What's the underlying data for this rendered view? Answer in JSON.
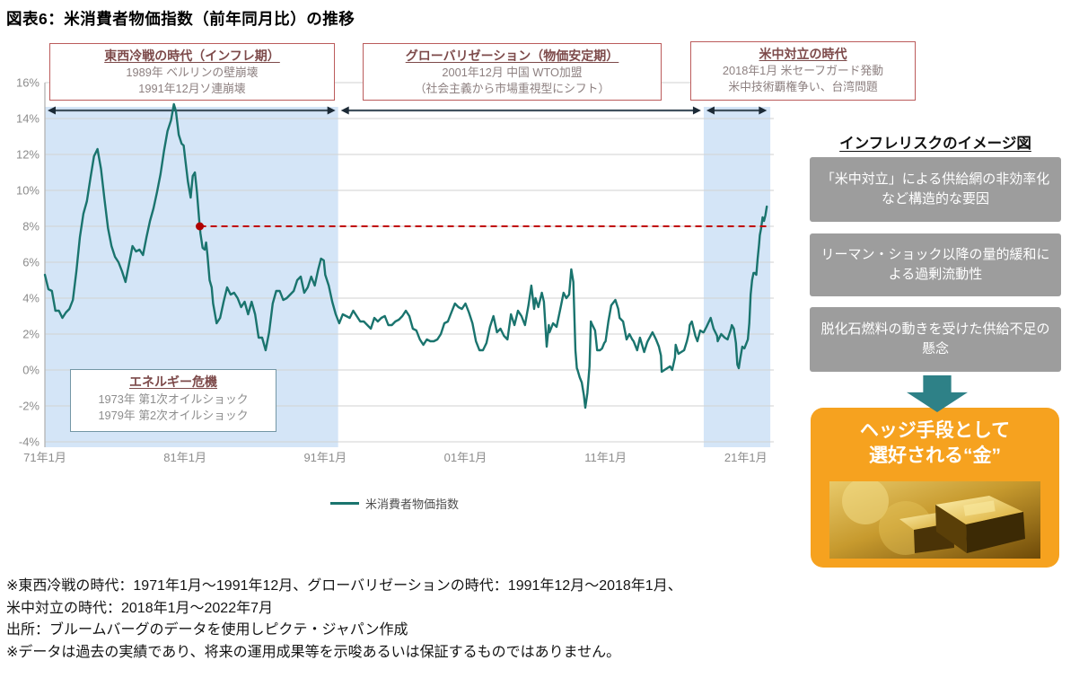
{
  "title": "図表6：米消費者物価指数（前年同月比）の推移",
  "chart_data": {
    "type": "line",
    "title": "米消費者物価指数（前年同月比）の推移",
    "xlabel": "",
    "ylabel": "",
    "x_range": [
      1971,
      2023
    ],
    "y_range": [
      -4,
      16
    ],
    "grid": "horizontal",
    "y_ticks": [
      "-4%",
      "-2%",
      "0%",
      "2%",
      "4%",
      "6%",
      "8%",
      "10%",
      "12%",
      "14%",
      "16%"
    ],
    "x_ticks": [
      {
        "year": 1971,
        "label": "71年1月"
      },
      {
        "year": 1981,
        "label": "81年1月"
      },
      {
        "year": 1991,
        "label": "91年1月"
      },
      {
        "year": 2001,
        "label": "01年1月"
      },
      {
        "year": 2011,
        "label": "11年1月"
      },
      {
        "year": 2021,
        "label": "21年1月"
      }
    ],
    "regions": [
      {
        "name": "東西冷戦の時代",
        "start": 1971,
        "end": 1991.92,
        "color": "#d4e5f7"
      },
      {
        "name": "米中対立の時代",
        "start": 2018,
        "end": 2022.75,
        "color": "#d4e5f7"
      }
    ],
    "era_arrows": [
      {
        "start": 1971.0,
        "end": 1991.92
      },
      {
        "start": 1991.92,
        "end": 2018.0
      },
      {
        "start": 2018.0,
        "end": 2022.7
      }
    ],
    "reference_line": {
      "y": 8,
      "x_start": 1982.05,
      "x_end": 2022.6,
      "color": "#c00000",
      "dot": [
        1982.05,
        8
      ]
    },
    "legend": {
      "label": "米消費者物価指数",
      "position": "bottom"
    },
    "series": [
      {
        "name": "米消費者物価指数",
        "color": "#1a746e",
        "points": [
          [
            1971,
            5.3
          ],
          [
            1971.25,
            4.5
          ],
          [
            1971.5,
            4.4
          ],
          [
            1971.75,
            3.3
          ],
          [
            1972,
            3.3
          ],
          [
            1972.25,
            2.9
          ],
          [
            1972.5,
            3.2
          ],
          [
            1972.75,
            3.4
          ],
          [
            1973,
            3.9
          ],
          [
            1973.25,
            5.5
          ],
          [
            1973.5,
            7.4
          ],
          [
            1973.75,
            8.7
          ],
          [
            1974,
            9.4
          ],
          [
            1974.25,
            10.7
          ],
          [
            1974.5,
            11.9
          ],
          [
            1974.75,
            12.3
          ],
          [
            1975,
            11.2
          ],
          [
            1975.25,
            9.5
          ],
          [
            1975.5,
            7.9
          ],
          [
            1975.75,
            6.9
          ],
          [
            1976,
            6.3
          ],
          [
            1976.25,
            6.0
          ],
          [
            1976.5,
            5.5
          ],
          [
            1976.75,
            4.9
          ],
          [
            1977,
            5.9
          ],
          [
            1977.25,
            6.9
          ],
          [
            1977.5,
            6.6
          ],
          [
            1977.75,
            6.7
          ],
          [
            1978,
            6.4
          ],
          [
            1978.25,
            7.4
          ],
          [
            1978.5,
            8.3
          ],
          [
            1978.75,
            9.0
          ],
          [
            1979,
            9.9
          ],
          [
            1979.25,
            10.9
          ],
          [
            1979.5,
            12.2
          ],
          [
            1979.75,
            13.3
          ],
          [
            1980,
            13.9
          ],
          [
            1980.2,
            14.8
          ],
          [
            1980.35,
            14.4
          ],
          [
            1980.55,
            13.1
          ],
          [
            1980.75,
            12.6
          ],
          [
            1980.9,
            12.5
          ],
          [
            1981,
            11.8
          ],
          [
            1981.2,
            10.5
          ],
          [
            1981.4,
            9.6
          ],
          [
            1981.55,
            10.8
          ],
          [
            1981.7,
            11.0
          ],
          [
            1981.85,
            9.9
          ],
          [
            1981.95,
            8.9
          ],
          [
            1982,
            8.4
          ],
          [
            1982.1,
            7.6
          ],
          [
            1982.25,
            6.8
          ],
          [
            1982.4,
            6.7
          ],
          [
            1982.5,
            7.1
          ],
          [
            1982.6,
            6.4
          ],
          [
            1982.75,
            5.0
          ],
          [
            1982.9,
            4.6
          ],
          [
            1983,
            3.7
          ],
          [
            1983.25,
            2.6
          ],
          [
            1983.5,
            2.9
          ],
          [
            1983.75,
            3.8
          ],
          [
            1984,
            4.6
          ],
          [
            1984.25,
            4.2
          ],
          [
            1984.5,
            4.3
          ],
          [
            1984.75,
            4.0
          ],
          [
            1985,
            3.5
          ],
          [
            1985.25,
            3.8
          ],
          [
            1985.5,
            3.1
          ],
          [
            1985.75,
            3.8
          ],
          [
            1986,
            3.1
          ],
          [
            1986.25,
            1.8
          ],
          [
            1986.5,
            1.8
          ],
          [
            1986.75,
            1.1
          ],
          [
            1987,
            2.1
          ],
          [
            1987.25,
            3.7
          ],
          [
            1987.5,
            4.4
          ],
          [
            1987.75,
            4.4
          ],
          [
            1988,
            3.9
          ],
          [
            1988.25,
            4.0
          ],
          [
            1988.5,
            4.2
          ],
          [
            1988.75,
            4.4
          ],
          [
            1989,
            5.0
          ],
          [
            1989.25,
            5.2
          ],
          [
            1989.5,
            4.3
          ],
          [
            1989.75,
            4.6
          ],
          [
            1990,
            5.2
          ],
          [
            1990.25,
            4.7
          ],
          [
            1990.5,
            5.6
          ],
          [
            1990.7,
            6.2
          ],
          [
            1990.9,
            6.1
          ],
          [
            1991,
            5.3
          ],
          [
            1991.25,
            4.7
          ],
          [
            1991.5,
            3.8
          ],
          [
            1991.75,
            3.1
          ],
          [
            1992,
            2.6
          ],
          [
            1992.25,
            3.1
          ],
          [
            1992.5,
            3.0
          ],
          [
            1992.75,
            2.9
          ],
          [
            1993,
            3.3
          ],
          [
            1993.25,
            3.0
          ],
          [
            1993.5,
            2.7
          ],
          [
            1993.75,
            2.7
          ],
          [
            1994,
            2.5
          ],
          [
            1994.25,
            2.3
          ],
          [
            1994.5,
            2.9
          ],
          [
            1994.75,
            2.7
          ],
          [
            1995,
            2.9
          ],
          [
            1995.25,
            3.0
          ],
          [
            1995.5,
            2.5
          ],
          [
            1995.75,
            2.5
          ],
          [
            1996,
            2.7
          ],
          [
            1996.25,
            2.8
          ],
          [
            1996.5,
            3.0
          ],
          [
            1996.75,
            3.3
          ],
          [
            1997,
            3.0
          ],
          [
            1997.25,
            2.3
          ],
          [
            1997.5,
            2.2
          ],
          [
            1997.75,
            1.7
          ],
          [
            1998,
            1.4
          ],
          [
            1998.25,
            1.7
          ],
          [
            1998.5,
            1.6
          ],
          [
            1998.75,
            1.6
          ],
          [
            1999,
            1.7
          ],
          [
            1999.25,
            2.0
          ],
          [
            1999.5,
            2.6
          ],
          [
            1999.75,
            2.7
          ],
          [
            2000,
            3.2
          ],
          [
            2000.25,
            3.7
          ],
          [
            2000.5,
            3.5
          ],
          [
            2000.75,
            3.4
          ],
          [
            2001,
            3.7
          ],
          [
            2001.25,
            3.2
          ],
          [
            2001.5,
            2.6
          ],
          [
            2001.75,
            1.6
          ],
          [
            2002,
            1.1
          ],
          [
            2002.25,
            1.1
          ],
          [
            2002.5,
            1.5
          ],
          [
            2002.75,
            2.4
          ],
          [
            2003,
            3.0
          ],
          [
            2003.25,
            2.1
          ],
          [
            2003.5,
            2.3
          ],
          [
            2003.75,
            1.9
          ],
          [
            2004,
            1.7
          ],
          [
            2004.25,
            3.1
          ],
          [
            2004.5,
            2.5
          ],
          [
            2004.75,
            3.3
          ],
          [
            2005,
            3.0
          ],
          [
            2005.25,
            2.5
          ],
          [
            2005.5,
            3.6
          ],
          [
            2005.7,
            4.7
          ],
          [
            2005.9,
            3.4
          ],
          [
            2006,
            4.0
          ],
          [
            2006.2,
            3.5
          ],
          [
            2006.45,
            4.3
          ],
          [
            2006.6,
            3.8
          ],
          [
            2006.8,
            1.3
          ],
          [
            2006.95,
            2.5
          ],
          [
            2007,
            2.1
          ],
          [
            2007.25,
            2.6
          ],
          [
            2007.5,
            2.4
          ],
          [
            2007.8,
            3.5
          ],
          [
            2007.95,
            4.1
          ],
          [
            2008,
            4.3
          ],
          [
            2008.2,
            4.0
          ],
          [
            2008.4,
            4.2
          ],
          [
            2008.55,
            5.6
          ],
          [
            2008.7,
            4.9
          ],
          [
            2008.85,
            1.1
          ],
          [
            2008.95,
            0.1
          ],
          [
            2009,
            0.0
          ],
          [
            2009.15,
            -0.4
          ],
          [
            2009.3,
            -0.7
          ],
          [
            2009.45,
            -1.4
          ],
          [
            2009.55,
            -2.1
          ],
          [
            2009.7,
            -1.3
          ],
          [
            2009.85,
            0.2
          ],
          [
            2009.95,
            2.7
          ],
          [
            2010,
            2.6
          ],
          [
            2010.25,
            2.2
          ],
          [
            2010.4,
            1.1
          ],
          [
            2010.6,
            1.1
          ],
          [
            2010.75,
            1.2
          ],
          [
            2010.9,
            1.5
          ],
          [
            2011,
            1.6
          ],
          [
            2011.2,
            2.7
          ],
          [
            2011.4,
            3.6
          ],
          [
            2011.6,
            3.8
          ],
          [
            2011.7,
            3.9
          ],
          [
            2011.9,
            3.4
          ],
          [
            2012,
            2.9
          ],
          [
            2012.25,
            2.7
          ],
          [
            2012.5,
            1.7
          ],
          [
            2012.7,
            2.0
          ],
          [
            2012.9,
            1.7
          ],
          [
            2013,
            1.6
          ],
          [
            2013.25,
            1.1
          ],
          [
            2013.45,
            1.8
          ],
          [
            2013.75,
            1.0
          ],
          [
            2013.95,
            1.5
          ],
          [
            2014,
            1.6
          ],
          [
            2014.35,
            2.1
          ],
          [
            2014.6,
            1.7
          ],
          [
            2014.8,
            1.3
          ],
          [
            2014.95,
            0.8
          ],
          [
            2015,
            -0.1
          ],
          [
            2015.2,
            0.0
          ],
          [
            2015.4,
            0.1
          ],
          [
            2015.6,
            0.2
          ],
          [
            2015.75,
            0.0
          ],
          [
            2015.95,
            0.7
          ],
          [
            2016,
            1.4
          ],
          [
            2016.2,
            0.9
          ],
          [
            2016.4,
            1.0
          ],
          [
            2016.6,
            1.1
          ],
          [
            2016.8,
            1.6
          ],
          [
            2016.95,
            2.1
          ],
          [
            2017,
            2.5
          ],
          [
            2017.15,
            2.7
          ],
          [
            2017.4,
            1.9
          ],
          [
            2017.55,
            1.6
          ],
          [
            2017.75,
            2.2
          ],
          [
            2017.95,
            2.1
          ],
          [
            2018,
            2.1
          ],
          [
            2018.2,
            2.4
          ],
          [
            2018.5,
            2.9
          ],
          [
            2018.7,
            2.3
          ],
          [
            2018.95,
            1.9
          ],
          [
            2019,
            1.6
          ],
          [
            2019.25,
            2.0
          ],
          [
            2019.5,
            1.8
          ],
          [
            2019.7,
            1.7
          ],
          [
            2019.95,
            2.3
          ],
          [
            2020,
            2.5
          ],
          [
            2020.15,
            2.3
          ],
          [
            2020.3,
            1.5
          ],
          [
            2020.4,
            0.3
          ],
          [
            2020.5,
            0.1
          ],
          [
            2020.6,
            0.6
          ],
          [
            2020.75,
            1.3
          ],
          [
            2020.9,
            1.2
          ],
          [
            2021,
            1.4
          ],
          [
            2021.15,
            1.7
          ],
          [
            2021.25,
            2.6
          ],
          [
            2021.35,
            4.2
          ],
          [
            2021.45,
            5.0
          ],
          [
            2021.55,
            5.4
          ],
          [
            2021.65,
            5.4
          ],
          [
            2021.75,
            5.3
          ],
          [
            2021.85,
            6.2
          ],
          [
            2021.95,
            7.0
          ],
          [
            2022,
            7.5
          ],
          [
            2022.1,
            7.9
          ],
          [
            2022.2,
            8.5
          ],
          [
            2022.3,
            8.3
          ],
          [
            2022.4,
            8.6
          ],
          [
            2022.5,
            9.1
          ]
        ]
      }
    ]
  },
  "era_boxes": [
    {
      "title": "東西冷戦の時代（インフレ期）",
      "lines": [
        "1989年 ベルリンの壁崩壊",
        "1991年12月ソ連崩壊"
      ]
    },
    {
      "title": "グローバリゼーション（物価安定期）",
      "lines": [
        "2001年12月 中国 WTO加盟",
        "（社会主義から市場重視型にシフト）"
      ]
    },
    {
      "title": "米中対立の時代",
      "lines": [
        "2018年1月 米セーフガード発動",
        "米中技術覇権争い、台湾問題"
      ]
    }
  ],
  "energy_box": {
    "title": "エネルギー危機",
    "lines": [
      "1973年 第1次オイルショック",
      "1979年 第2次オイルショック"
    ]
  },
  "legend_label": "米消費者物価指数",
  "sidebar": {
    "header": "インフレリスクのイメージ図",
    "risk_boxes": [
      "「米中対立」による供給網の非効率化など構造的な要因",
      "リーマン・ショック以降の量的緩和による過剰流動性",
      "脱化石燃料の動きを受けた供給不足の懸念"
    ],
    "conclusion": {
      "line1": "ヘッジ手段として",
      "line2": "選好される“金”"
    }
  },
  "footnotes": [
    "※東西冷戦の時代：1971年1月～1991年12月、グローバリゼーションの時代：1991年12月～2018年1月、",
    "米中対立の時代：2018年1月～2022年7月",
    "出所：ブルームバーグのデータを使用しピクテ・ジャパン作成",
    "※データは過去の実績であり、将来の運用成果等を示唆あるいは保証するものではありません。"
  ],
  "colors": {
    "line": "#1a746e",
    "region": "#d4e5f7",
    "reference": "#c00000",
    "era_border": "#bb5b5b",
    "risk_box_bg": "#9d9d9d",
    "gold_box_bg": "#f6a21f",
    "arrow": "#2e8187"
  }
}
